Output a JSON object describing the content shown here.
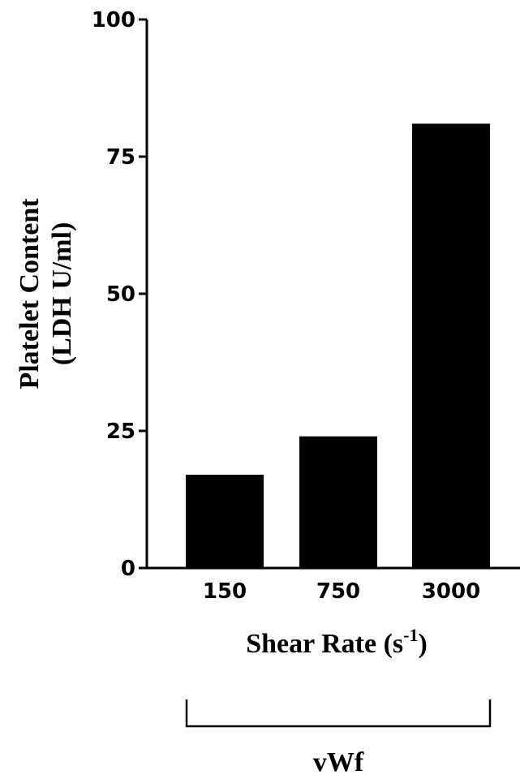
{
  "chart_data": {
    "type": "bar",
    "categories": [
      "150",
      "750",
      "3000"
    ],
    "values": [
      17,
      24,
      81
    ],
    "ylim": [
      0,
      100
    ],
    "yticks": [
      "0",
      "25",
      "50",
      "75",
      "100"
    ],
    "ylabel_line1": "Platelet Content",
    "ylabel_line2": "(LDH U/ml)",
    "xlabel_main": "Shear Rate (s",
    "xlabel_sup": "-1",
    "xlabel_close": ")",
    "group_label": "vWf",
    "bar_color": "#000000",
    "grid": false
  }
}
